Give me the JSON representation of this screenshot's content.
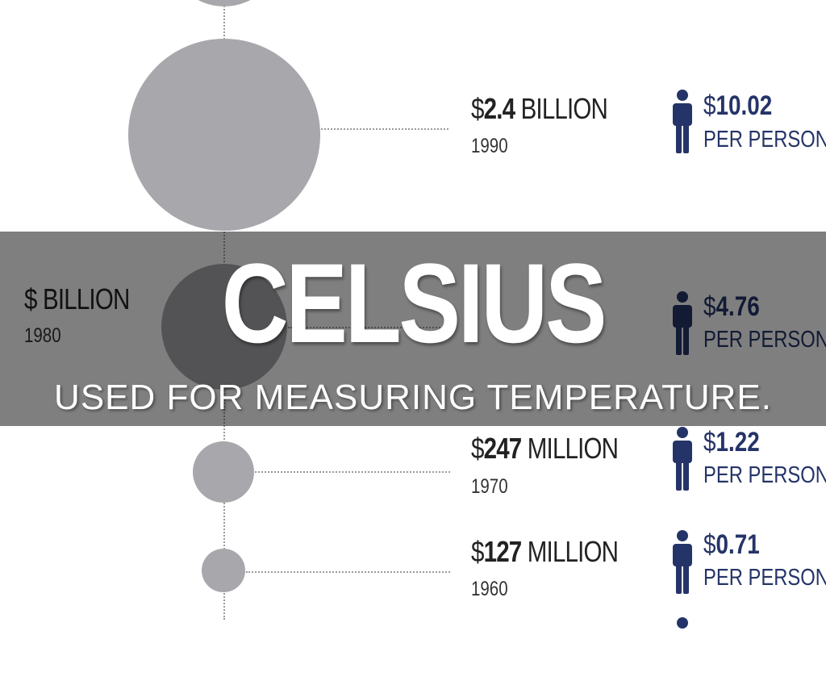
{
  "colors": {
    "circle": "#a7a7ac",
    "accent": "#253468",
    "overlay": "rgba(0,0,0,0.5)"
  },
  "rows": [
    {
      "currency": "$",
      "value": "2.4",
      "unit": " BILLION",
      "year": "1990",
      "per_currency": "$",
      "per_value": "10.02",
      "per_label": "PER PERSON"
    },
    {
      "currency": "$",
      "value": "",
      "unit": " BILLION",
      "year": "1980",
      "per_currency": "$",
      "per_value": "4.76",
      "per_label": "PER PERSON"
    },
    {
      "currency": "$",
      "value": "247",
      "unit": " MILLION",
      "year": "1970",
      "per_currency": "$",
      "per_value": "1.22",
      "per_label": "PER PERSON"
    },
    {
      "currency": "$",
      "value": "127",
      "unit": " MILLION",
      "year": "1960",
      "per_currency": "$",
      "per_value": "0.71",
      "per_label": "PER PERSON"
    }
  ],
  "icon": "person-icon",
  "slide": {
    "title": "CELSIUS",
    "subtitle": "USED FOR MEASURING TEMPERATURE."
  }
}
